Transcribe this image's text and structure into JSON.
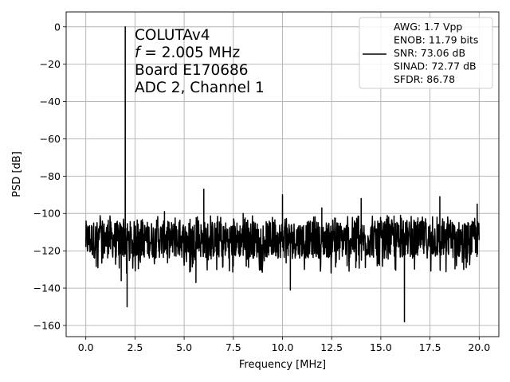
{
  "chart_data": {
    "type": "line",
    "title": "",
    "xlabel": "Frequency [MHz]",
    "ylabel": "PSD [dB]",
    "xlim": [
      -1.0,
      21.0
    ],
    "ylim": [
      -166,
      8
    ],
    "grid": true,
    "x_ticks": [
      0.0,
      2.5,
      5.0,
      7.5,
      10.0,
      12.5,
      15.0,
      17.5,
      20.0
    ],
    "x_tick_labels": [
      "0.0",
      "2.5",
      "5.0",
      "7.5",
      "10.0",
      "12.5",
      "15.0",
      "17.5",
      "20.0"
    ],
    "y_ticks": [
      0,
      -20,
      -40,
      -60,
      -80,
      -100,
      -120,
      -140,
      -160
    ],
    "y_tick_labels": [
      "0",
      "−20",
      "−40",
      "−60",
      "−80",
      "−100",
      "−120",
      "−140",
      "−160"
    ],
    "annotation": {
      "lines": [
        "COLUTAv4",
        "f = 2.005 MHz",
        "Board E170686",
        "ADC 2, Channel 1"
      ],
      "line2_italic": "f",
      "line2_rest": " = 2.005 MHz"
    },
    "legend": {
      "placement": "top-right",
      "line_color": "#000000",
      "entries": [
        "AWG: 1.7 Vpp",
        "ENOB: 11.79 bits",
        "SNR: 73.06 dB",
        "SINAD: 72.77 dB",
        "SFDR: 86.78"
      ]
    },
    "series": [
      {
        "color": "#000000",
        "noise_floor": {
          "x_range": [
            0.0,
            20.0
          ],
          "median": -115,
          "range": [
            -124,
            -104
          ]
        },
        "peaks": [
          {
            "x": 2.005,
            "y": 0
          },
          {
            "x": 6.0,
            "y": -87
          },
          {
            "x": 10.0,
            "y": -90
          },
          {
            "x": 14.0,
            "y": -92
          },
          {
            "x": 18.0,
            "y": -91
          },
          {
            "x": 4.0,
            "y": -99
          },
          {
            "x": 8.0,
            "y": -100
          },
          {
            "x": 12.0,
            "y": -97
          },
          {
            "x": 16.0,
            "y": -101
          },
          {
            "x": 19.9,
            "y": -95
          }
        ],
        "dips": [
          {
            "x": 2.1,
            "y": -150
          },
          {
            "x": 16.2,
            "y": -158
          },
          {
            "x": 10.4,
            "y": -141
          },
          {
            "x": 1.8,
            "y": -136
          },
          {
            "x": 5.6,
            "y": -137
          }
        ]
      }
    ]
  }
}
